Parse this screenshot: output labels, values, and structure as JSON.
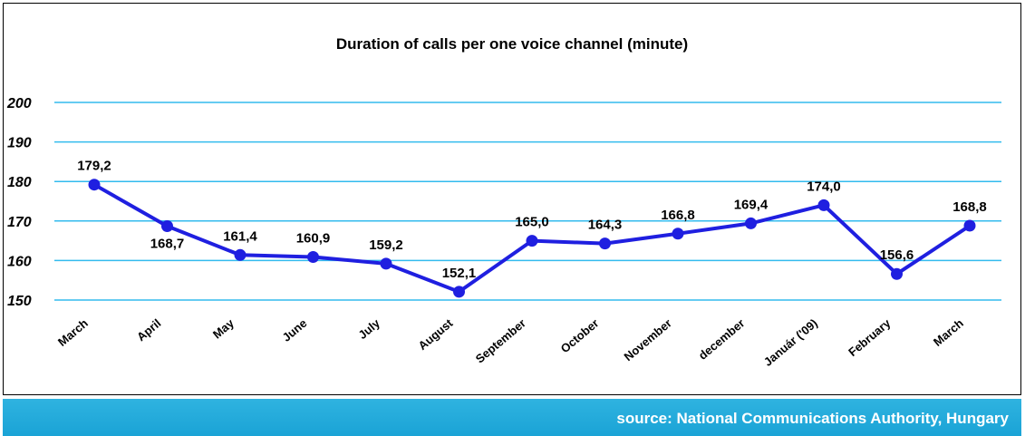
{
  "footer": {
    "source": "source: National Communications Authority, Hungary"
  },
  "colors": {
    "line": "#1f1fe0",
    "grid": "#33bbee",
    "footer": "#22aadd"
  },
  "chart_data": {
    "type": "line",
    "title": "Duration of calls per one voice channel (minute)",
    "xlabel": "",
    "ylabel": "",
    "categories": [
      "March",
      "April",
      "May",
      "June",
      "July",
      "August",
      "September",
      "October",
      "November",
      "december",
      "Január ('09)",
      "February",
      "March"
    ],
    "series": [
      {
        "values": [
          179.2,
          168.7,
          161.4,
          160.9,
          159.2,
          152.1,
          165.0,
          164.3,
          166.8,
          169.4,
          174.0,
          156.6,
          168.8
        ]
      }
    ],
    "data_labels": [
      "179,2",
      "168,7",
      "161,4",
      "160,9",
      "159,2",
      "152,1",
      "165,0",
      "164,3",
      "166,8",
      "169,4",
      "174,0",
      "156,6",
      "168,8"
    ],
    "ylim": [
      150,
      200
    ],
    "yticks": [
      150,
      160,
      170,
      180,
      190,
      200
    ],
    "grid": true,
    "legend": "none"
  }
}
